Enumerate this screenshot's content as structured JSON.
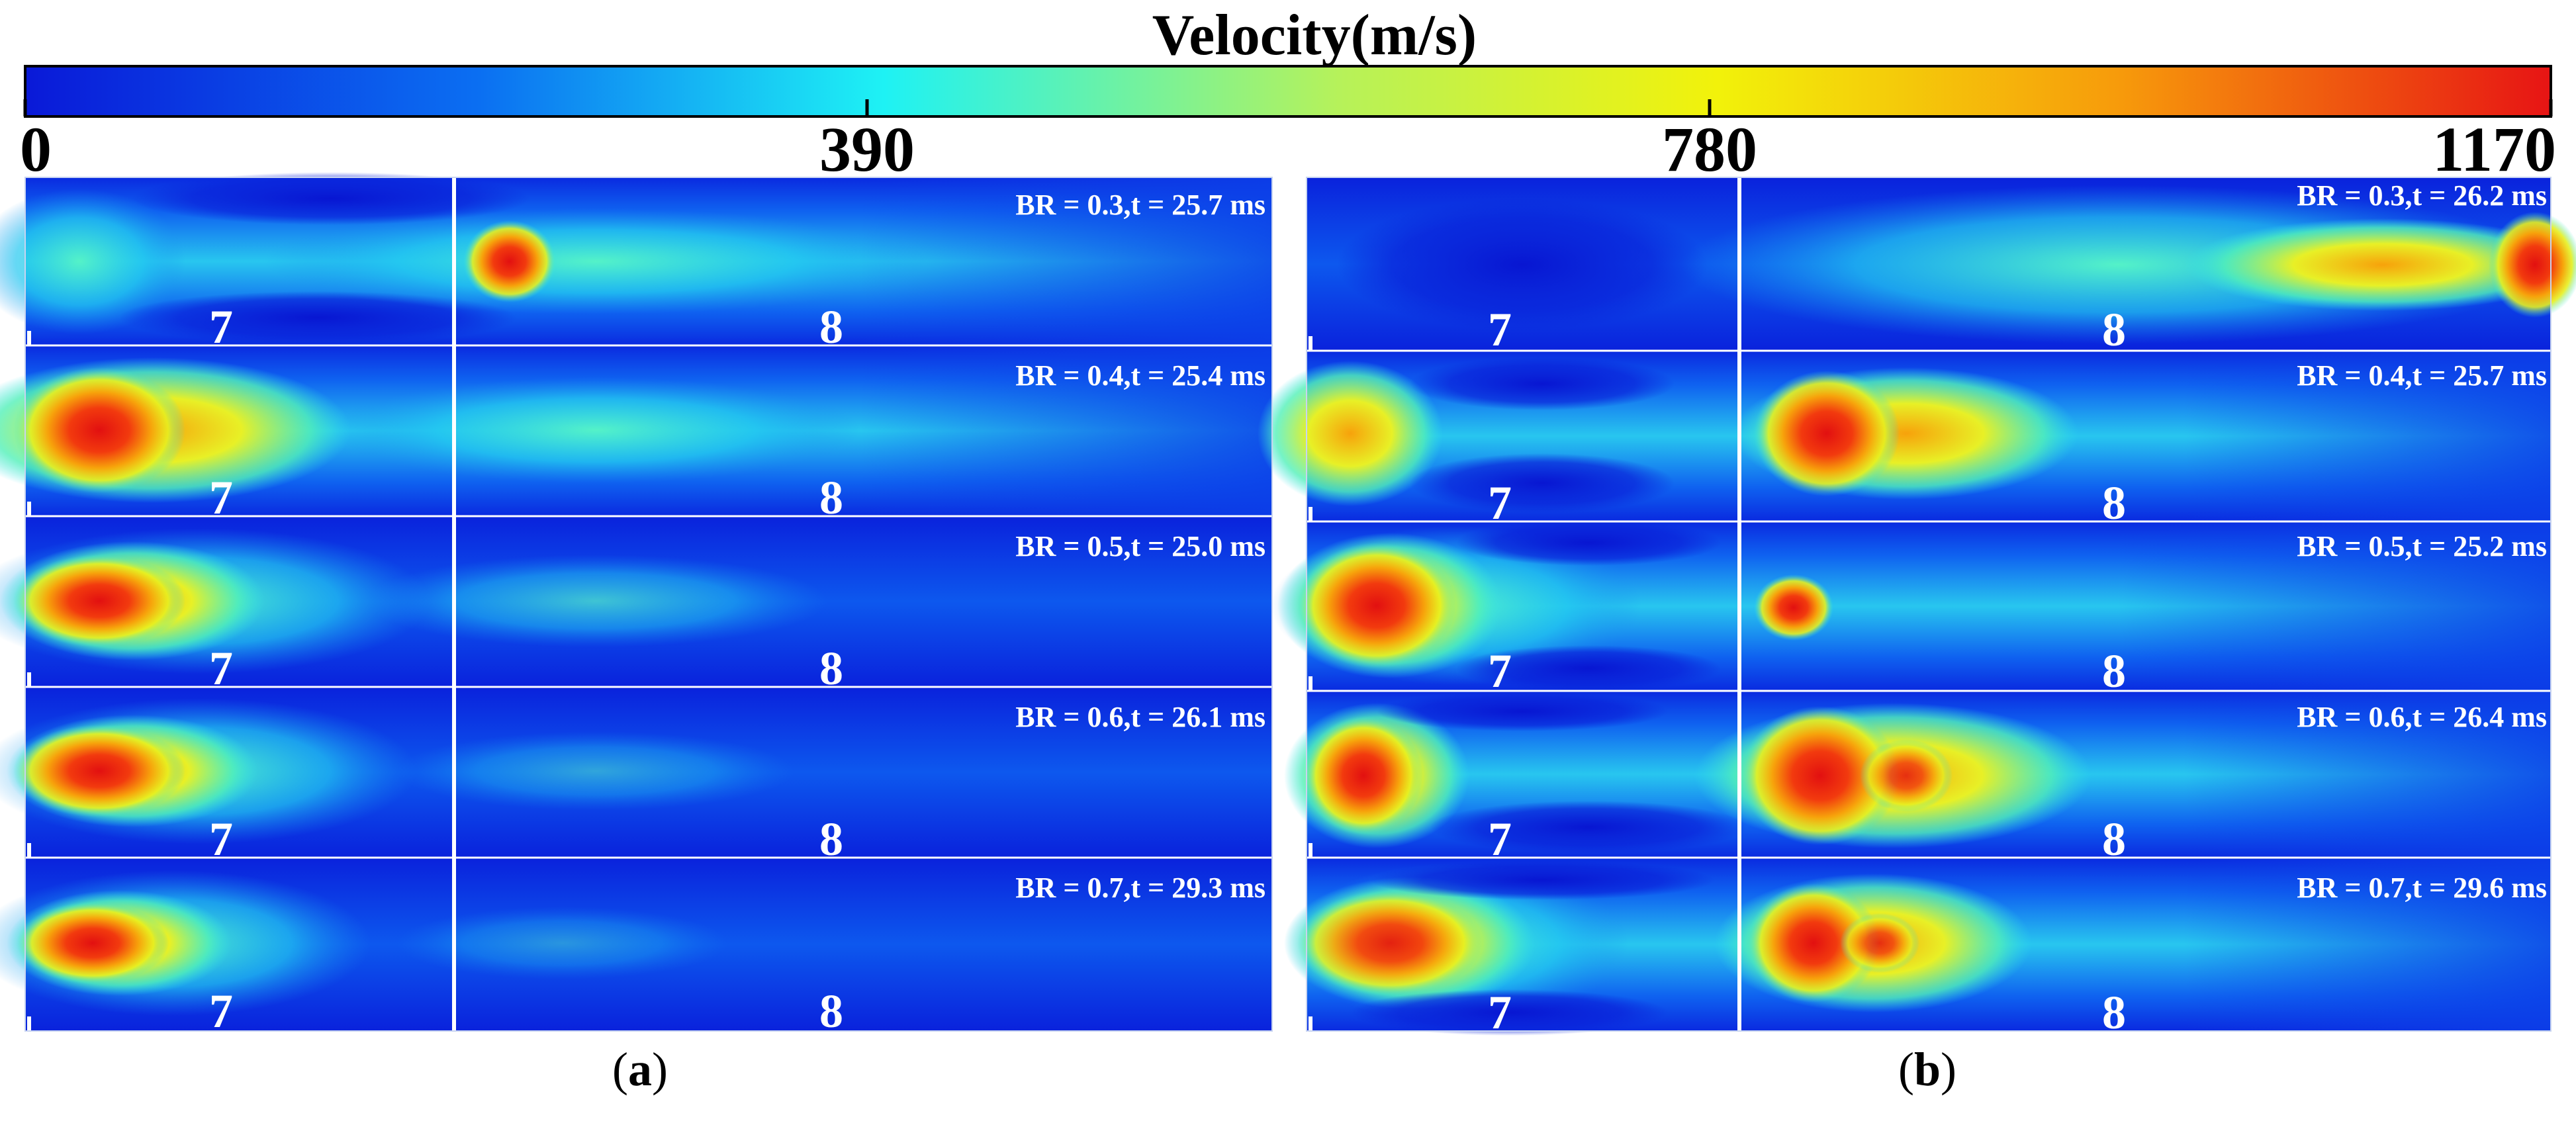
{
  "colorbar": {
    "title": "Velocity(m/s)",
    "ticks": [
      "0",
      "390",
      "780",
      "1170"
    ],
    "min": 0,
    "max": 1170,
    "colors": [
      "#0a19d8",
      "#0b6ff2",
      "#1ef2f4",
      "#b6f25a",
      "#f2f20a",
      "#f79a0b",
      "#e71414"
    ]
  },
  "panels": [
    {
      "label": "a",
      "rows": [
        {
          "br": 0.3,
          "text": "BR = 0.3,t = 25.7 ms",
          "seg_left": "7",
          "seg_right": "8"
        },
        {
          "br": 0.4,
          "text": "BR = 0.4,t = 25.4 ms",
          "seg_left": "7",
          "seg_right": "8"
        },
        {
          "br": 0.5,
          "text": "BR = 0.5,t = 25.0 ms",
          "seg_left": "7",
          "seg_right": "8"
        },
        {
          "br": 0.6,
          "text": "BR = 0.6,t = 26.1 ms",
          "seg_left": "7",
          "seg_right": "8"
        },
        {
          "br": 0.7,
          "text": "BR = 0.7,t = 29.3 ms",
          "seg_left": "7",
          "seg_right": "8"
        }
      ]
    },
    {
      "label": "b",
      "rows": [
        {
          "br": 0.3,
          "text": "BR = 0.3,t = 26.2 ms",
          "seg_left": "7",
          "seg_right": "8"
        },
        {
          "br": 0.4,
          "text": "BR = 0.4,t = 25.7 ms",
          "seg_left": "7",
          "seg_right": "8"
        },
        {
          "br": 0.5,
          "text": "BR = 0.5,t = 25.2 ms",
          "seg_left": "7",
          "seg_right": "8"
        },
        {
          "br": 0.6,
          "text": "BR = 0.6,t = 26.4 ms",
          "seg_left": "7",
          "seg_right": "8"
        },
        {
          "br": 0.7,
          "text": "BR = 0.7,t = 29.6 ms",
          "seg_left": "7",
          "seg_right": "8"
        }
      ]
    }
  ]
}
